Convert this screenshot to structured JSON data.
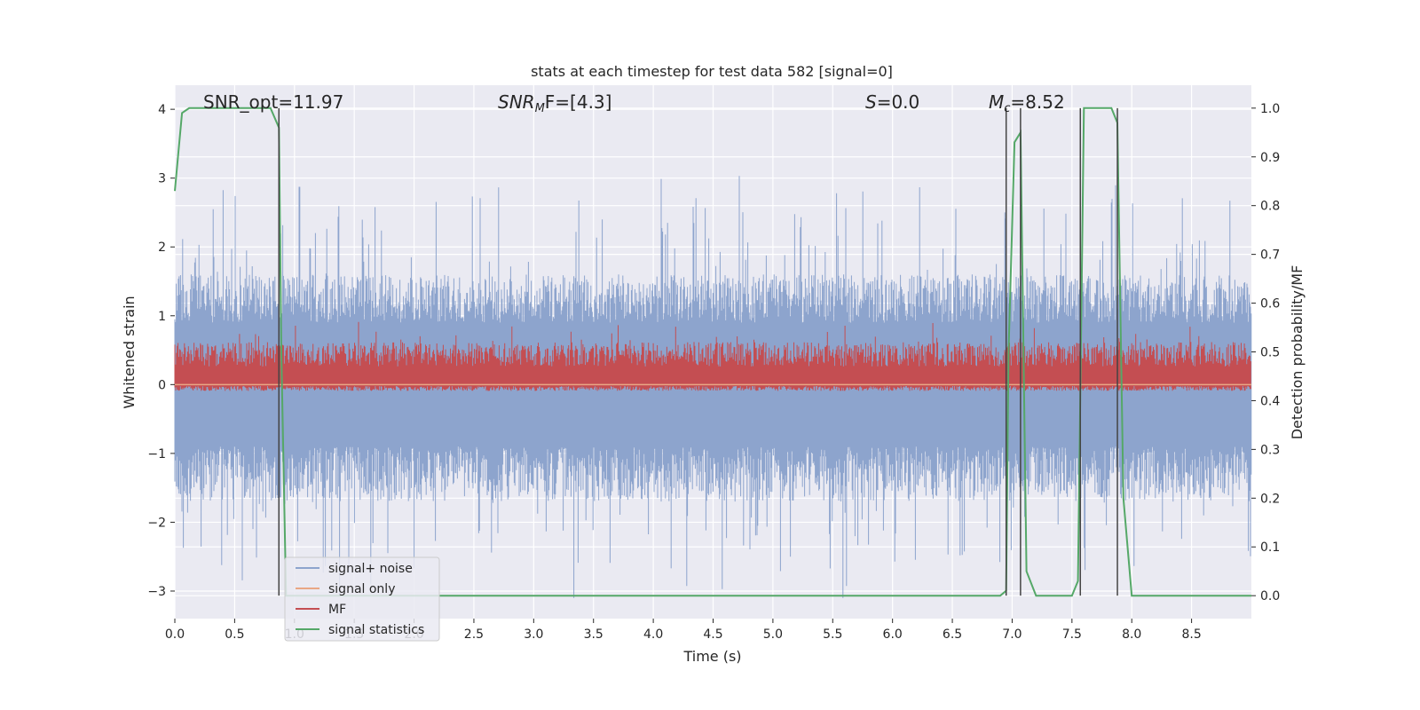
{
  "chart_data": {
    "type": "line",
    "title": "stats at each timestep for test data 582 [signal=0]",
    "xlabel": "Time (s)",
    "ylabel_left": "Whitened strain",
    "ylabel_right": "Detection probability/MF",
    "xlim": [
      0,
      9.0
    ],
    "ylim_left": [
      -3.4,
      4.35
    ],
    "ylim_right": [
      -0.047,
      1.047
    ],
    "x_ticks": [
      0.0,
      0.5,
      1.0,
      1.5,
      2.0,
      2.5,
      3.0,
      3.5,
      4.0,
      4.5,
      5.0,
      5.5,
      6.0,
      6.5,
      7.0,
      7.5,
      8.0,
      8.5
    ],
    "x_tick_labels": [
      "0.0",
      "0.5",
      "1.0",
      "1.5",
      "2.0",
      "2.5",
      "3.0",
      "3.5",
      "4.0",
      "4.5",
      "5.0",
      "5.5",
      "6.0",
      "6.5",
      "7.0",
      "7.5",
      "8.0",
      "8.5"
    ],
    "y_left_ticks": [
      -3,
      -2,
      -1,
      0,
      1,
      2,
      3,
      4
    ],
    "y_left_tick_labels": [
      "−3",
      "−2",
      "−1",
      "0",
      "1",
      "2",
      "3",
      "4"
    ],
    "y_right_ticks": [
      0.0,
      0.1,
      0.2,
      0.3,
      0.4,
      0.5,
      0.6,
      0.7,
      0.8,
      0.9,
      1.0
    ],
    "y_right_tick_labels": [
      "0.0",
      "0.1",
      "0.2",
      "0.3",
      "0.4",
      "0.5",
      "0.6",
      "0.7",
      "0.8",
      "0.9",
      "1.0"
    ],
    "annotations": [
      {
        "name": "snr-opt",
        "text": "SNR_opt=11.97",
        "x": 0.19,
        "italic": false
      },
      {
        "name": "snr-mf",
        "text_main": "SNR",
        "text_sub": "M",
        "text_rest": "F=[4.3]",
        "x": 2.6
      },
      {
        "name": "s-value",
        "text_main": "S",
        "text_rest": "=0.0",
        "x": 5.6
      },
      {
        "name": "mc-value",
        "text_main": "M",
        "text_sub": "c",
        "text_rest": "=8.52",
        "x": 6.6
      }
    ],
    "series": [
      {
        "name": "signal+ noise",
        "color": "#8da4cd",
        "axis": "left",
        "description": "whitened strain noise, approx ±1.5 with spikes to ±3.3"
      },
      {
        "name": "signal only",
        "color": "#e9a785",
        "axis": "left",
        "values": "zero"
      },
      {
        "name": "MF",
        "color": "#c44e52",
        "axis": "right",
        "range": [
          0.42,
          0.57
        ]
      },
      {
        "name": "signal statistics",
        "color": "#55a868",
        "axis": "right",
        "x": [
          0.0,
          0.06,
          0.12,
          0.2,
          0.8,
          0.87,
          0.89,
          0.93,
          1.0,
          6.9,
          6.95,
          6.97,
          7.02,
          7.07,
          7.12,
          7.2,
          7.5,
          7.55,
          7.6,
          7.63,
          7.83,
          7.88,
          7.93,
          8.0,
          9.0
        ],
        "y": [
          0.83,
          0.99,
          1.0,
          1.0,
          1.0,
          0.96,
          0.5,
          0.0,
          0.0,
          0.0,
          0.01,
          0.5,
          0.93,
          0.95,
          0.05,
          0.0,
          0.0,
          0.03,
          1.0,
          1.0,
          1.0,
          0.97,
          0.2,
          0.0,
          0.0
        ]
      }
    ],
    "vertical_lines": [
      0.87,
      6.95,
      7.07,
      7.57,
      7.88
    ],
    "legend": {
      "location": "lower-left",
      "entries": [
        "signal+ noise",
        "signal only",
        "MF",
        "signal statistics"
      ]
    },
    "grid": true
  }
}
